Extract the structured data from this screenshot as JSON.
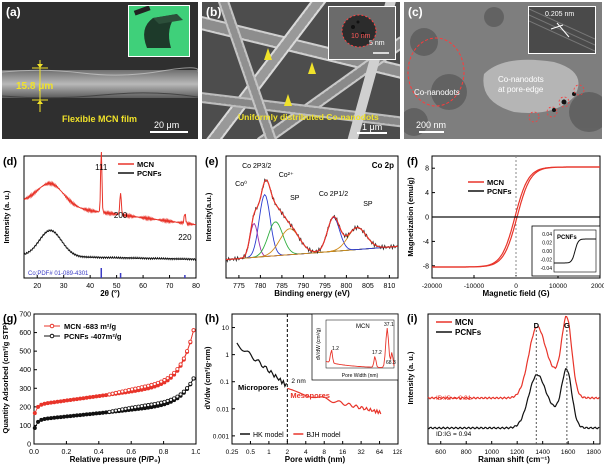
{
  "panels": {
    "a": {
      "label": "(a)",
      "thickness": "15.8 μm",
      "caption": "Flexible  MCN film",
      "scale": "20 μm"
    },
    "b": {
      "label": "(b)",
      "inset_size": "10 nm",
      "inset_scale": "5 nm",
      "caption": "Uniformly distributed Co-nanodots",
      "scale": "1 μm"
    },
    "c": {
      "label": "(c)",
      "lattice": "0.205 nm",
      "co_label": "Co-nanodots",
      "edge_label": "Co-nanodots\nat pore-edge",
      "scale": "200 nm"
    }
  },
  "chart_data": [
    {
      "panel": "(d)",
      "type": "line",
      "xlabel": "2θ (°)",
      "ylabel": "Intensity (a. u.)",
      "xlim": [
        15,
        80
      ],
      "xticks": [
        20,
        30,
        40,
        50,
        60,
        70,
        80
      ],
      "legend": [
        "MCN",
        "PCNFs"
      ],
      "peak_labels": [
        {
          "x": 44.2,
          "text": "111"
        },
        {
          "x": 51.5,
          "text": "200"
        },
        {
          "x": 75.8,
          "text": "220"
        }
      ],
      "reference": "Co:PDF# 01-089-4301",
      "colors": {
        "MCN": "#e8342a",
        "PCNFs": "#111111",
        "reference": "#3b3bc4"
      }
    },
    {
      "panel": "(e)",
      "type": "line",
      "title": "Co 2p",
      "xlabel": "Binding energy  (eV)",
      "ylabel": "Intensity(a.u.)",
      "xlim": [
        772,
        812
      ],
      "xticks": [
        775,
        780,
        785,
        790,
        795,
        800,
        805,
        810
      ],
      "annotations": [
        "Co 2P3/2",
        "Co⁰",
        "Co²⁺",
        "SP",
        "Co 2P1/2",
        "SP"
      ]
    },
    {
      "panel": "(f)",
      "type": "line",
      "xlabel": "Magnetic field (G)",
      "ylabel": "Magnetization (emu/g)",
      "xlim": [
        -20000,
        20000
      ],
      "ylim": [
        -10,
        10
      ],
      "xticks": [
        -20000,
        -10000,
        0,
        10000,
        20000
      ],
      "yticks": [
        -8,
        -4,
        0,
        4,
        8
      ],
      "legend": [
        "MCN",
        "PCNFs"
      ],
      "inset": {
        "label": "PCNFs",
        "yticks": [
          "0.04",
          "0.02",
          "0.00",
          "-0.02",
          "-0.04"
        ]
      }
    },
    {
      "panel": "(g)",
      "type": "scatter",
      "xlabel": "Relative pressure (P/P₀)",
      "ylabel": "Quantity Adsorbed (cm³/g STP)",
      "xlim": [
        0,
        1
      ],
      "ylim": [
        0,
        700
      ],
      "xticks": [
        0.0,
        0.2,
        0.4,
        0.6,
        0.8,
        1.0
      ],
      "yticks": [
        0,
        100,
        200,
        300,
        400,
        500,
        600,
        700
      ],
      "legend": [
        "MCN -683 m²/g",
        "PCNFs -407m²/g"
      ]
    },
    {
      "panel": "(h)",
      "type": "line",
      "xlabel": "Pore width (nm)",
      "ylabel": "dV/dw (cm³/g·nm)",
      "xticks": [
        "0.25",
        "0.5",
        "1",
        "2",
        "4",
        "8",
        "16",
        "32",
        "64",
        "128"
      ],
      "yticks": [
        "10",
        "1",
        "0.1",
        "0.01",
        "0.001"
      ],
      "regions": [
        "Micropores",
        "Mesopores"
      ],
      "boundary": "2 nm",
      "models": [
        "HK model",
        "BJH model"
      ],
      "inset": {
        "label": "MCN",
        "xlabel": "Pore Width (nm)",
        "ylabel": "dV/dW (cm³/g)",
        "peaks": [
          "37.1",
          "1.2",
          "17.2",
          "68.3"
        ]
      }
    },
    {
      "panel": "(i)",
      "type": "line",
      "xlabel": "Raman shift (cm⁻¹)",
      "ylabel": "Intensity (a. u.)",
      "xlim": [
        500,
        1850
      ],
      "xticks": [
        600,
        800,
        1000,
        1200,
        1400,
        1600,
        1800
      ],
      "legend": [
        "MCN",
        "PCNFs"
      ],
      "bands": [
        {
          "x": 1350,
          "text": "D"
        },
        {
          "x": 1590,
          "text": "G"
        }
      ],
      "ratios": [
        "ID:IG = 0.91",
        "ID:IG = 0.94"
      ]
    }
  ]
}
